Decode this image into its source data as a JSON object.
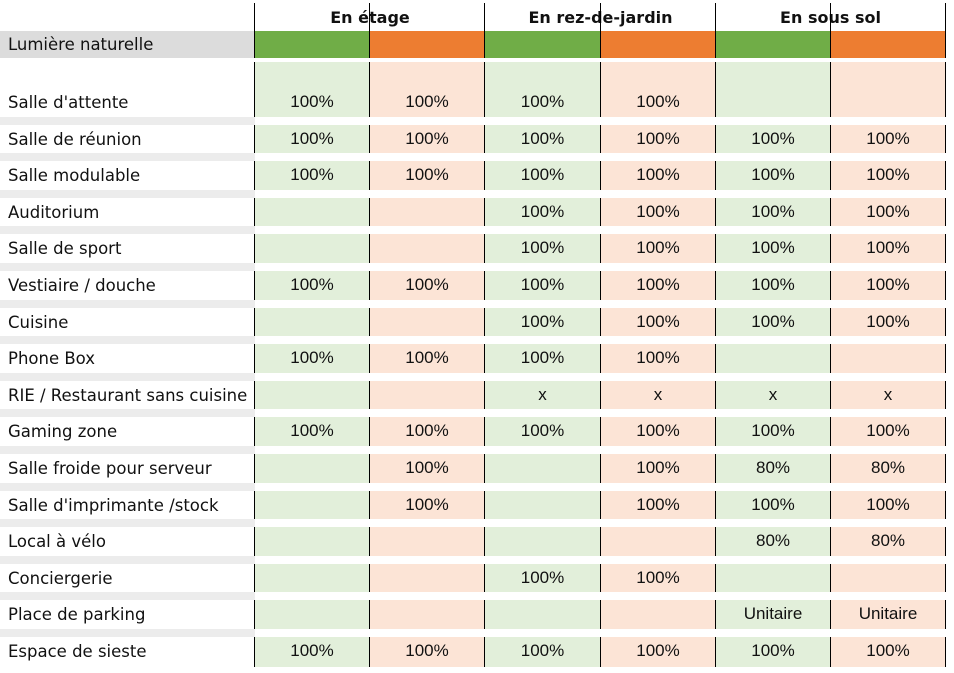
{
  "groups": [
    "En étage",
    "En rez-de-jardin",
    "En sous sol"
  ],
  "lumiere_label": "Lumière naturelle",
  "colors": {
    "green": "#70ad47",
    "orange": "#ed7d31",
    "light_green": "#e2efda",
    "light_orange": "#fce4d6"
  },
  "rows": [
    {
      "label": "Salle d'attente",
      "values": [
        "100%",
        "100%",
        "100%",
        "100%",
        "",
        ""
      ]
    },
    {
      "label": "Salle de réunion",
      "values": [
        "100%",
        "100%",
        "100%",
        "100%",
        "100%",
        "100%"
      ]
    },
    {
      "label": "Salle modulable",
      "values": [
        "100%",
        "100%",
        "100%",
        "100%",
        "100%",
        "100%"
      ]
    },
    {
      "label": "Auditorium",
      "values": [
        "",
        "",
        "100%",
        "100%",
        "100%",
        "100%"
      ]
    },
    {
      "label": "Salle de sport",
      "values": [
        "",
        "",
        "100%",
        "100%",
        "100%",
        "100%"
      ]
    },
    {
      "label": "Vestiaire / douche",
      "values": [
        "100%",
        "100%",
        "100%",
        "100%",
        "100%",
        "100%"
      ]
    },
    {
      "label": "Cuisine",
      "values": [
        "",
        "",
        "100%",
        "100%",
        "100%",
        "100%"
      ]
    },
    {
      "label": "Phone Box",
      "values": [
        "100%",
        "100%",
        "100%",
        "100%",
        "",
        ""
      ]
    },
    {
      "label": "RIE / Restaurant sans cuisine",
      "values": [
        "",
        "",
        "x",
        "x",
        "x",
        "x"
      ]
    },
    {
      "label": "Gaming zone",
      "values": [
        "100%",
        "100%",
        "100%",
        "100%",
        "100%",
        "100%"
      ]
    },
    {
      "label": "Salle froide pour serveur",
      "values": [
        "",
        "100%",
        "",
        "100%",
        "80%",
        "80%"
      ]
    },
    {
      "label": "Salle d'imprimante /stock",
      "values": [
        "",
        "100%",
        "",
        "100%",
        "100%",
        "100%"
      ]
    },
    {
      "label": "Local à vélo",
      "values": [
        "",
        "",
        "",
        "",
        "80%",
        "80%"
      ]
    },
    {
      "label": "Conciergerie",
      "values": [
        "",
        "",
        "100%",
        "100%",
        "",
        ""
      ]
    },
    {
      "label": "Place de parking",
      "values": [
        "",
        "",
        "",
        "",
        "Unitaire",
        "Unitaire"
      ]
    },
    {
      "label": "Espace de sieste",
      "values": [
        "100%",
        "100%",
        "100%",
        "100%",
        "100%",
        "100%"
      ]
    }
  ]
}
